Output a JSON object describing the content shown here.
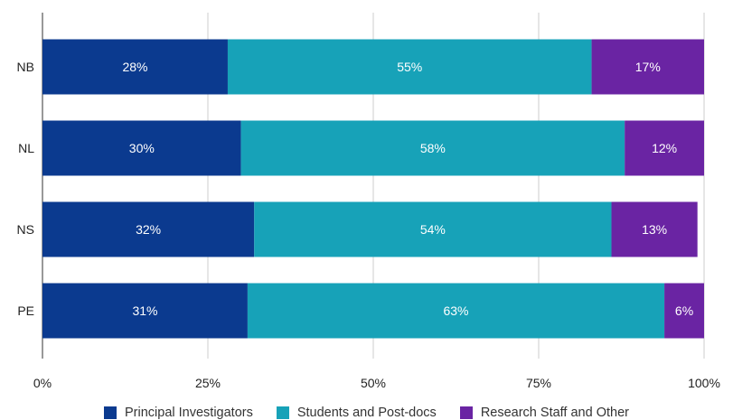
{
  "chart_data": {
    "type": "bar",
    "orientation": "horizontal",
    "stacked": true,
    "categories": [
      "NB",
      "NL",
      "NS",
      "PE"
    ],
    "series": [
      {
        "name": "Principal Investigators",
        "color": "#0b3a8f",
        "values": [
          28,
          30,
          32,
          31
        ],
        "labels": [
          "28%",
          "30%",
          "32%",
          "31%"
        ]
      },
      {
        "name": "Students and Post-docs",
        "color": "#17a2b8",
        "values": [
          55,
          58,
          54,
          63
        ],
        "labels": [
          "55%",
          "58%",
          "54%",
          "63%"
        ]
      },
      {
        "name": "Research Staff and Other",
        "color": "#6a24a3",
        "values": [
          17,
          12,
          13,
          6
        ],
        "labels": [
          "17%",
          "12%",
          "13%",
          "6%"
        ]
      }
    ],
    "xlim": [
      0,
      100
    ],
    "xticks": [
      0,
      25,
      50,
      75,
      100
    ],
    "xtick_labels": [
      "0%",
      "25%",
      "50%",
      "75%",
      "100%"
    ],
    "grid": true,
    "legend_position": "bottom"
  }
}
